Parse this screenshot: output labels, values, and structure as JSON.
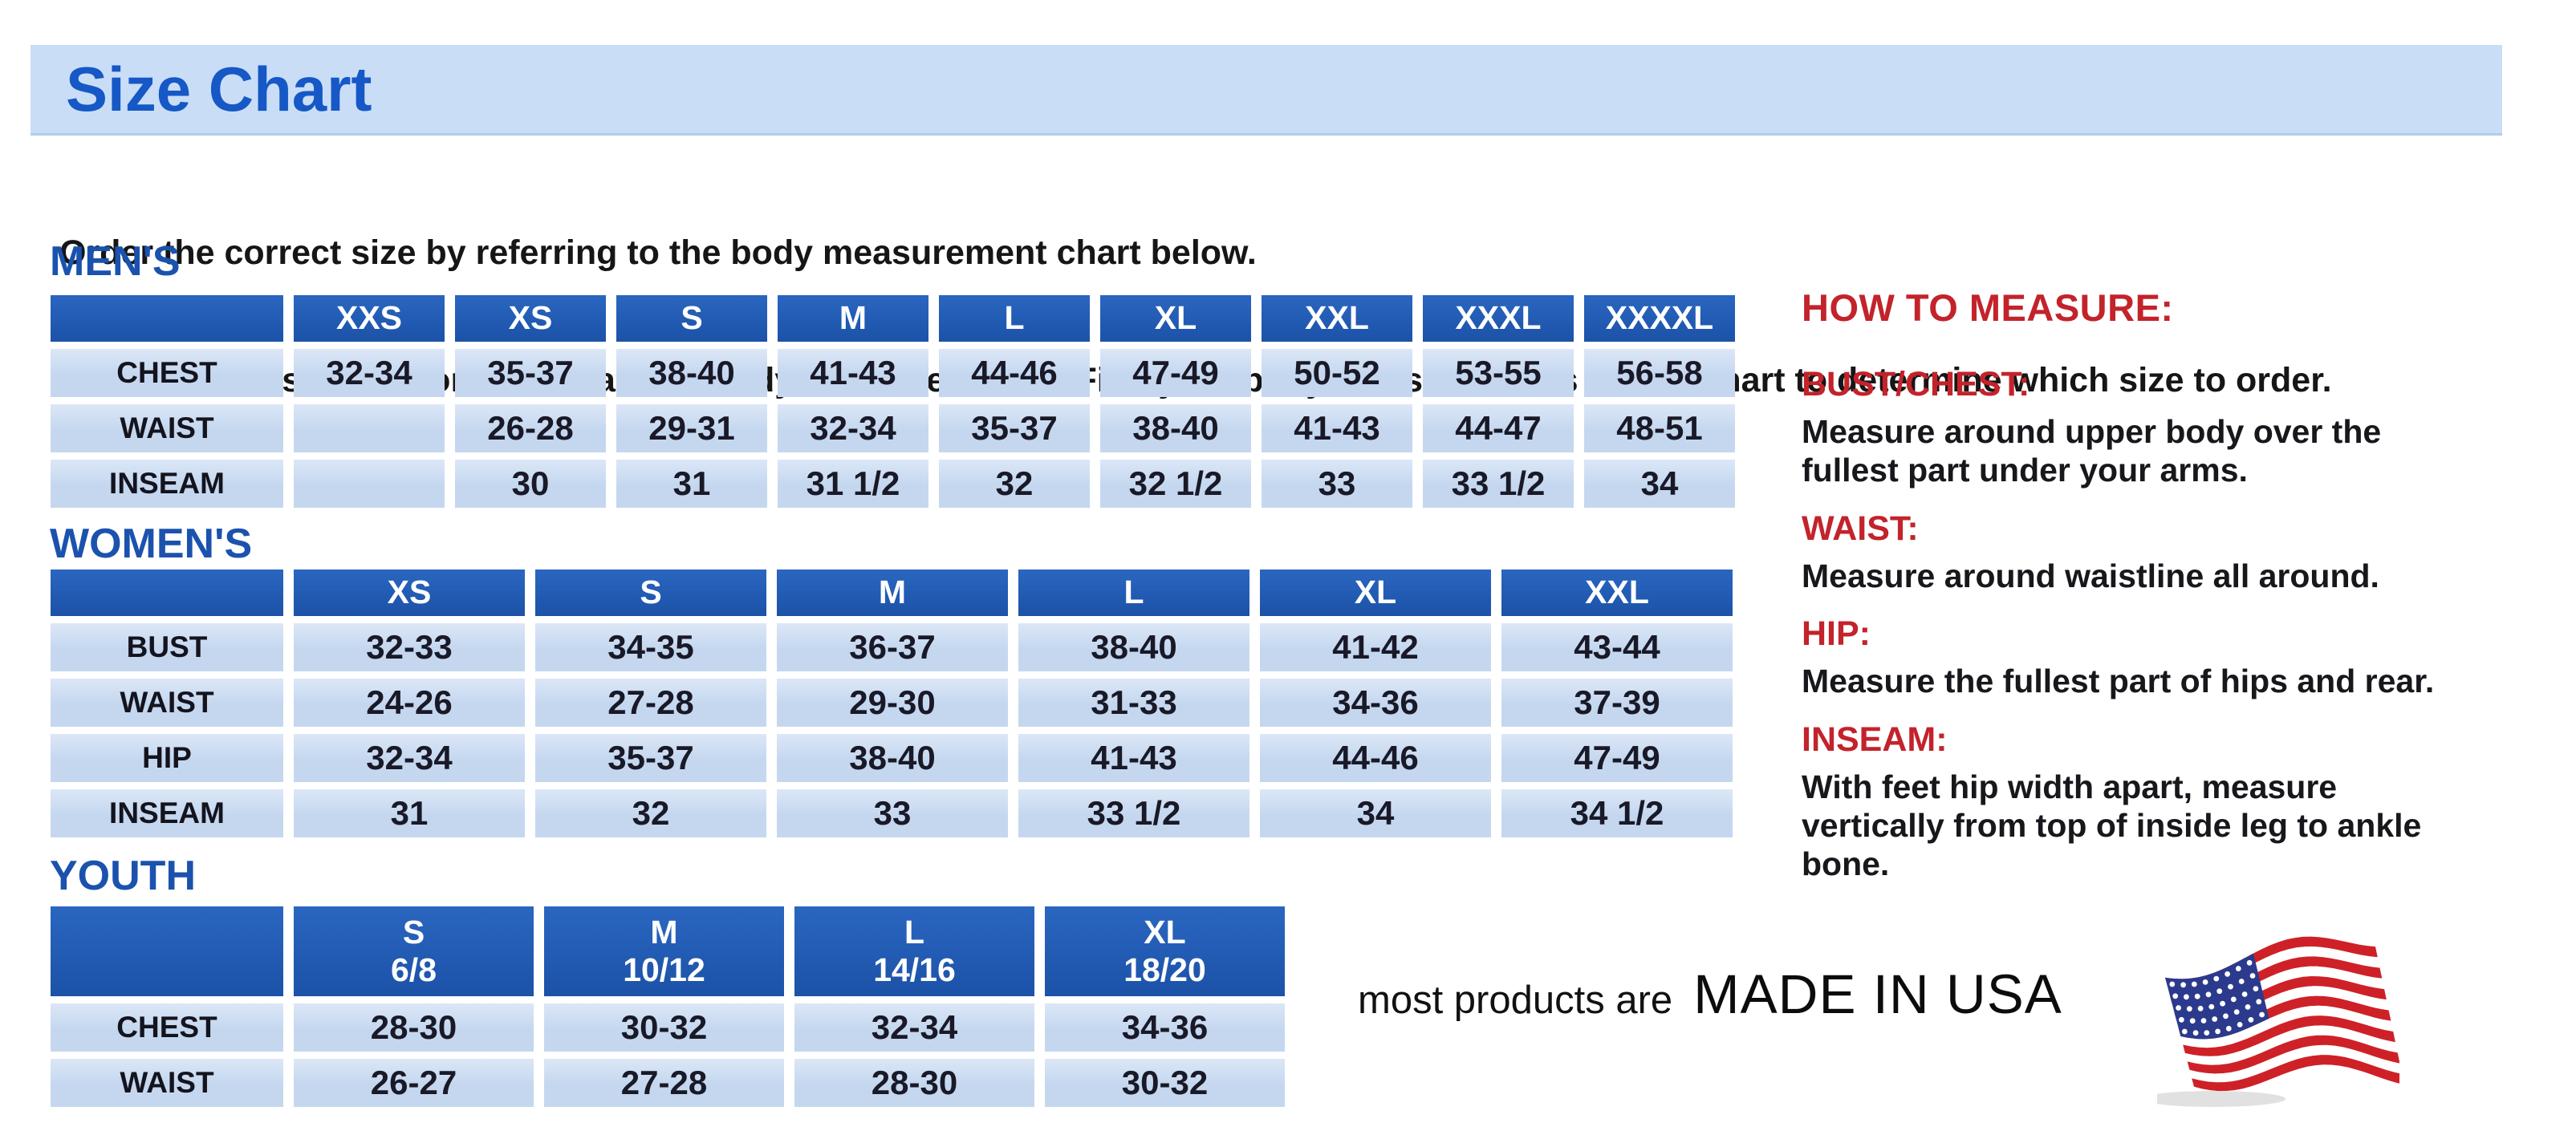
{
  "page": {
    "title": "Size Chart",
    "intro_line1": "Order the correct size by referring to the body measurement chart below.",
    "intro_line2": "Measurements shown on size chart are body measurements.  Find your body measurements on the chart to determine which size to order."
  },
  "colors": {
    "band_blue": "#c9ddf6",
    "title_blue": "#1558c6",
    "heading_blue": "#1b52ae",
    "table_header_blue": "#1e55ac",
    "cell_light_blue": "#c7d9f0",
    "accent_red": "#c3232b",
    "flag_red": "#ce2127",
    "flag_blue": "#2b3a8c"
  },
  "tables": [
    {
      "id": "mens",
      "heading": "MEN'S",
      "columns": [
        "XXS",
        "XS",
        "S",
        "M",
        "L",
        "XL",
        "XXL",
        "XXXL",
        "XXXXL"
      ],
      "rows": [
        {
          "label": "CHEST",
          "cells": [
            "32-34",
            "35-37",
            "38-40",
            "41-43",
            "44-46",
            "47-49",
            "50-52",
            "53-55",
            "56-58"
          ]
        },
        {
          "label": "WAIST",
          "cells": [
            "",
            "26-28",
            "29-31",
            "32-34",
            "35-37",
            "38-40",
            "41-43",
            "44-47",
            "48-51"
          ]
        },
        {
          "label": "INSEAM",
          "cells": [
            "",
            "30",
            "31",
            "31 1/2",
            "32",
            "32 1/2",
            "33",
            "33 1/2",
            "34"
          ]
        }
      ]
    },
    {
      "id": "womens",
      "heading": "WOMEN'S",
      "columns": [
        "XS",
        "S",
        "M",
        "L",
        "XL",
        "XXL"
      ],
      "rows": [
        {
          "label": "BUST",
          "cells": [
            "32-33",
            "34-35",
            "36-37",
            "38-40",
            "41-42",
            "43-44"
          ]
        },
        {
          "label": "WAIST",
          "cells": [
            "24-26",
            "27-28",
            "29-30",
            "31-33",
            "34-36",
            "37-39"
          ]
        },
        {
          "label": "HIP",
          "cells": [
            "32-34",
            "35-37",
            "38-40",
            "41-43",
            "44-46",
            "47-49"
          ]
        },
        {
          "label": "INSEAM",
          "cells": [
            "31",
            "32",
            "33",
            "33 1/2",
            "34",
            "34 1/2"
          ]
        }
      ]
    },
    {
      "id": "youth",
      "heading": "YOUTH",
      "columns": [
        [
          "S",
          "6/8"
        ],
        [
          "M",
          "10/12"
        ],
        [
          "L",
          "14/16"
        ],
        [
          "XL",
          "18/20"
        ]
      ],
      "rows": [
        {
          "label": "CHEST",
          "cells": [
            "28-30",
            "30-32",
            "32-34",
            "34-36"
          ]
        },
        {
          "label": "WAIST",
          "cells": [
            "26-27",
            "27-28",
            "28-30",
            "30-32"
          ]
        }
      ]
    }
  ],
  "how_to_measure": {
    "title": "HOW TO MEASURE:",
    "items": [
      {
        "label": "BUST/CHEST:",
        "text": "Measure around upper body over the fullest part under your arms."
      },
      {
        "label": "WAIST:",
        "text": "Measure around waistline all around."
      },
      {
        "label": "HIP:",
        "text": "Measure the fullest part of hips and rear."
      },
      {
        "label": "INSEAM:",
        "text": "With feet hip width apart, measure vertically from top of inside leg to ankle bone."
      }
    ]
  },
  "footer": {
    "prefix": "most products are",
    "made_in": "MADE IN USA",
    "flag_icon": "usa-flag-icon"
  }
}
